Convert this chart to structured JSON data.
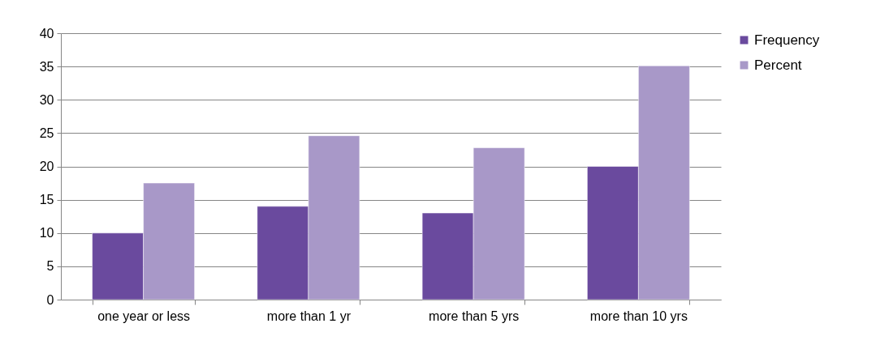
{
  "chart_data": {
    "type": "bar",
    "categories": [
      "one year or less",
      "more than 1 yr",
      "more than 5 yrs",
      "more than 10 yrs"
    ],
    "series": [
      {
        "name": "Frequency",
        "color": "#6a4a9e",
        "values": [
          10,
          14,
          13,
          20
        ]
      },
      {
        "name": "Percent",
        "color": "#a898c8",
        "values": [
          17.5,
          24.6,
          22.8,
          35.1
        ]
      }
    ],
    "ylim": [
      0,
      40
    ],
    "yticks": [
      0,
      5,
      10,
      15,
      20,
      25,
      30,
      35,
      40
    ],
    "grid": "y",
    "legend": "right"
  }
}
